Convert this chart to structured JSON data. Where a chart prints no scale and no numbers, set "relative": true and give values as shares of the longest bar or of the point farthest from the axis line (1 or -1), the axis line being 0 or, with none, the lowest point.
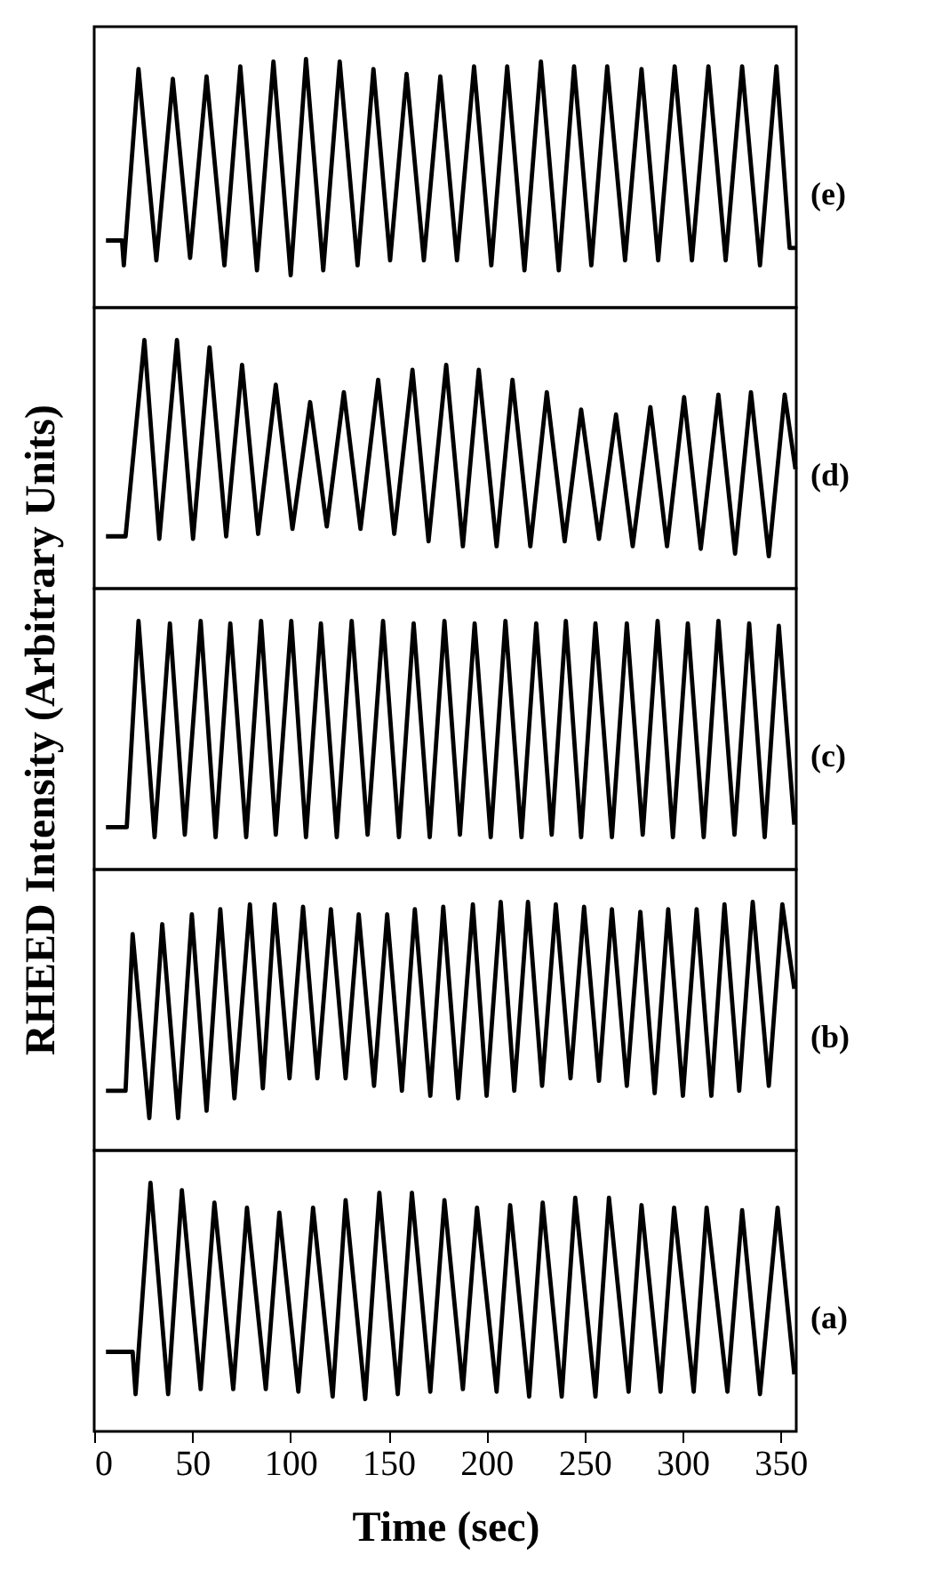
{
  "chart_data": [
    {
      "type": "line",
      "relative": true,
      "xlim": [
        0,
        358
      ],
      "tick_labels": false,
      "annotations": [
        "(e)"
      ],
      "color": "#000000",
      "x": [
        6.0,
        14.2,
        15.1,
        22.6,
        31.7,
        40.1,
        48.9,
        57.3,
        66.4,
        74.5,
        83.0,
        91.4,
        100.2,
        108.0,
        116.8,
        125.2,
        134.3,
        142.4,
        150.9,
        159.3,
        168.1,
        176.5,
        185.0,
        193.7,
        202.5,
        210.6,
        219.4,
        227.8,
        236.9,
        244.7,
        253.5,
        261.6,
        270.7,
        279.1,
        287.6,
        296.0,
        304.8,
        313.2,
        322.0,
        330.4,
        339.5,
        347.9,
        354.6,
        357.6
      ],
      "values": [
        0.27,
        0.27,
        0.17,
        0.96,
        0.19,
        0.92,
        0.2,
        0.93,
        0.17,
        0.97,
        0.15,
        0.99,
        0.13,
        1.0,
        0.15,
        0.99,
        0.17,
        0.96,
        0.19,
        0.94,
        0.19,
        0.93,
        0.19,
        0.97,
        0.17,
        0.97,
        0.15,
        0.99,
        0.15,
        0.97,
        0.17,
        0.97,
        0.19,
        0.96,
        0.19,
        0.97,
        0.19,
        0.97,
        0.19,
        0.97,
        0.17,
        0.97,
        0.24,
        0.24
      ]
    },
    {
      "type": "line",
      "relative": true,
      "xlim": [
        0,
        358
      ],
      "tick_labels": false,
      "annotations": [
        "(d)"
      ],
      "color": "#000000",
      "x": [
        6.0,
        16.0,
        25.6,
        33.2,
        42.2,
        50.4,
        58.8,
        67.3,
        75.4,
        83.6,
        92.6,
        101.1,
        110.1,
        118.6,
        127.3,
        135.8,
        144.8,
        153.0,
        162.3,
        170.5,
        179.5,
        188.0,
        196.1,
        205.2,
        213.3,
        222.4,
        230.8,
        239.9,
        248.3,
        257.4,
        266.1,
        274.6,
        283.6,
        292.1,
        300.8,
        309.3,
        318.3,
        326.8,
        334.9,
        344.0,
        352.1,
        357.6
      ],
      "values": [
        0.21,
        0.21,
        1.0,
        0.2,
        1.0,
        0.2,
        0.97,
        0.21,
        0.9,
        0.22,
        0.82,
        0.24,
        0.75,
        0.25,
        0.79,
        0.24,
        0.84,
        0.22,
        0.88,
        0.19,
        0.9,
        0.17,
        0.88,
        0.17,
        0.84,
        0.17,
        0.79,
        0.19,
        0.72,
        0.2,
        0.7,
        0.17,
        0.73,
        0.17,
        0.77,
        0.16,
        0.78,
        0.14,
        0.79,
        0.13,
        0.78,
        0.48
      ]
    },
    {
      "type": "line",
      "relative": true,
      "xlim": [
        0,
        358
      ],
      "tick_labels": false,
      "ylabel": "RHEED Intensity (Arbitrary Units)",
      "annotations": [
        "(c)"
      ],
      "color": "#000000",
      "x": [
        6.0,
        16.6,
        22.6,
        30.8,
        38.6,
        46.2,
        54.3,
        61.9,
        69.4,
        77.5,
        85.1,
        92.6,
        100.5,
        108.0,
        115.6,
        123.7,
        131.3,
        139.4,
        147.3,
        155.4,
        162.9,
        171.1,
        178.6,
        186.5,
        194.0,
        202.2,
        209.7,
        217.9,
        225.4,
        233.3,
        240.5,
        248.3,
        255.6,
        264.0,
        271.6,
        279.7,
        287.3,
        295.1,
        302.7,
        310.8,
        318.3,
        326.5,
        334.0,
        341.9,
        349.1,
        357.0
      ],
      "values": [
        0.17,
        0.17,
        1.0,
        0.13,
        0.99,
        0.14,
        1.0,
        0.13,
        0.99,
        0.13,
        1.0,
        0.14,
        1.0,
        0.13,
        0.99,
        0.13,
        1.0,
        0.14,
        1.0,
        0.13,
        0.99,
        0.13,
        1.0,
        0.14,
        0.99,
        0.13,
        1.0,
        0.13,
        0.99,
        0.14,
        1.0,
        0.13,
        0.99,
        0.13,
        0.99,
        0.14,
        1.0,
        0.13,
        0.99,
        0.13,
        1.0,
        0.14,
        0.99,
        0.13,
        0.98,
        0.18
      ]
    },
    {
      "type": "line",
      "relative": true,
      "xlim": [
        0,
        358
      ],
      "tick_labels": false,
      "annotations": [
        "(b)"
      ],
      "color": "#000000",
      "x": [
        6.0,
        16.0,
        19.6,
        28.1,
        34.7,
        42.8,
        49.8,
        57.3,
        64.3,
        71.5,
        79.4,
        86.0,
        92.0,
        99.6,
        106.5,
        113.8,
        120.7,
        128.2,
        134.9,
        142.7,
        149.4,
        156.9,
        163.5,
        171.4,
        178.0,
        185.6,
        193.1,
        200.1,
        207.3,
        214.2,
        221.2,
        228.4,
        235.4,
        242.9,
        249.8,
        257.4,
        264.0,
        271.6,
        278.5,
        285.8,
        292.7,
        300.2,
        307.2,
        314.7,
        321.4,
        328.9,
        335.8,
        344.0,
        350.9,
        357.0
      ],
      "values": [
        0.24,
        0.24,
        0.87,
        0.13,
        0.91,
        0.13,
        0.95,
        0.16,
        0.97,
        0.21,
        0.99,
        0.25,
        0.99,
        0.29,
        0.98,
        0.29,
        0.97,
        0.29,
        0.95,
        0.26,
        0.95,
        0.24,
        0.97,
        0.22,
        0.98,
        0.21,
        0.99,
        0.22,
        1.0,
        0.24,
        1.0,
        0.26,
        0.99,
        0.29,
        0.98,
        0.28,
        0.97,
        0.26,
        0.96,
        0.23,
        0.97,
        0.22,
        0.97,
        0.22,
        0.99,
        0.24,
        1.0,
        0.26,
        0.99,
        0.65
      ]
    },
    {
      "type": "line",
      "relative": true,
      "xlim": [
        0,
        358
      ],
      "xticks": [
        0,
        50,
        100,
        150,
        200,
        250,
        300,
        350
      ],
      "tick_labels": "x",
      "xlabel": "Time (sec)",
      "annotations": [
        "(a)"
      ],
      "color": "#000000",
      "x": [
        6.0,
        19.6,
        21.1,
        28.7,
        37.7,
        44.7,
        54.3,
        61.3,
        70.9,
        77.9,
        87.5,
        94.4,
        104.1,
        111.6,
        121.6,
        128.2,
        138.2,
        145.4,
        154.8,
        162.0,
        171.4,
        178.6,
        188.0,
        195.2,
        205.2,
        212.1,
        221.8,
        228.7,
        238.4,
        245.3,
        255.6,
        262.5,
        272.5,
        279.1,
        288.8,
        295.7,
        305.7,
        312.3,
        322.9,
        330.4,
        339.5,
        348.5,
        357.0
      ],
      "values": [
        0.32,
        0.32,
        0.15,
        1.0,
        0.15,
        0.97,
        0.17,
        0.92,
        0.17,
        0.9,
        0.17,
        0.88,
        0.16,
        0.9,
        0.14,
        0.93,
        0.13,
        0.96,
        0.15,
        0.96,
        0.16,
        0.93,
        0.17,
        0.9,
        0.16,
        0.91,
        0.14,
        0.92,
        0.14,
        0.94,
        0.14,
        0.94,
        0.16,
        0.91,
        0.16,
        0.9,
        0.16,
        0.9,
        0.16,
        0.89,
        0.15,
        0.9,
        0.23
      ]
    }
  ]
}
